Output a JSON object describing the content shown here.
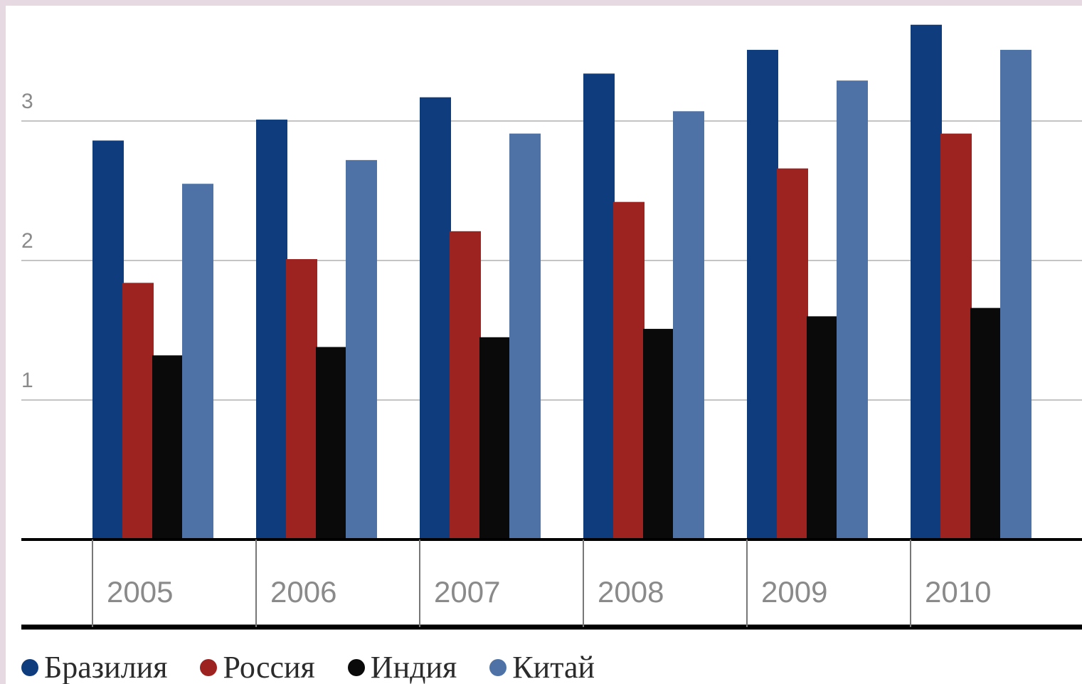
{
  "chart_data": {
    "type": "bar",
    "title": "",
    "xlabel": "",
    "ylabel": "",
    "categories": [
      "2005",
      "2006",
      "2007",
      "2008",
      "2009",
      "2010"
    ],
    "ylim": [
      0,
      3.7
    ],
    "yticks": [
      1,
      2,
      3
    ],
    "grid": true,
    "legend_position": "bottom-left",
    "series": [
      {
        "name": "Бразилия",
        "color": "#0e3c7d",
        "values": [
          2.86,
          3.01,
          3.17,
          3.34,
          3.51,
          3.69
        ]
      },
      {
        "name": "Россия",
        "color": "#9c2320",
        "values": [
          1.84,
          2.01,
          2.21,
          2.42,
          2.66,
          2.91
        ]
      },
      {
        "name": "Индия",
        "color": "#0a0a0a",
        "values": [
          1.32,
          1.38,
          1.45,
          1.51,
          1.6,
          1.66
        ]
      },
      {
        "name": "Китай",
        "color": "#4e72a6",
        "values": [
          2.55,
          2.72,
          2.91,
          3.07,
          3.29,
          3.51
        ]
      }
    ]
  }
}
